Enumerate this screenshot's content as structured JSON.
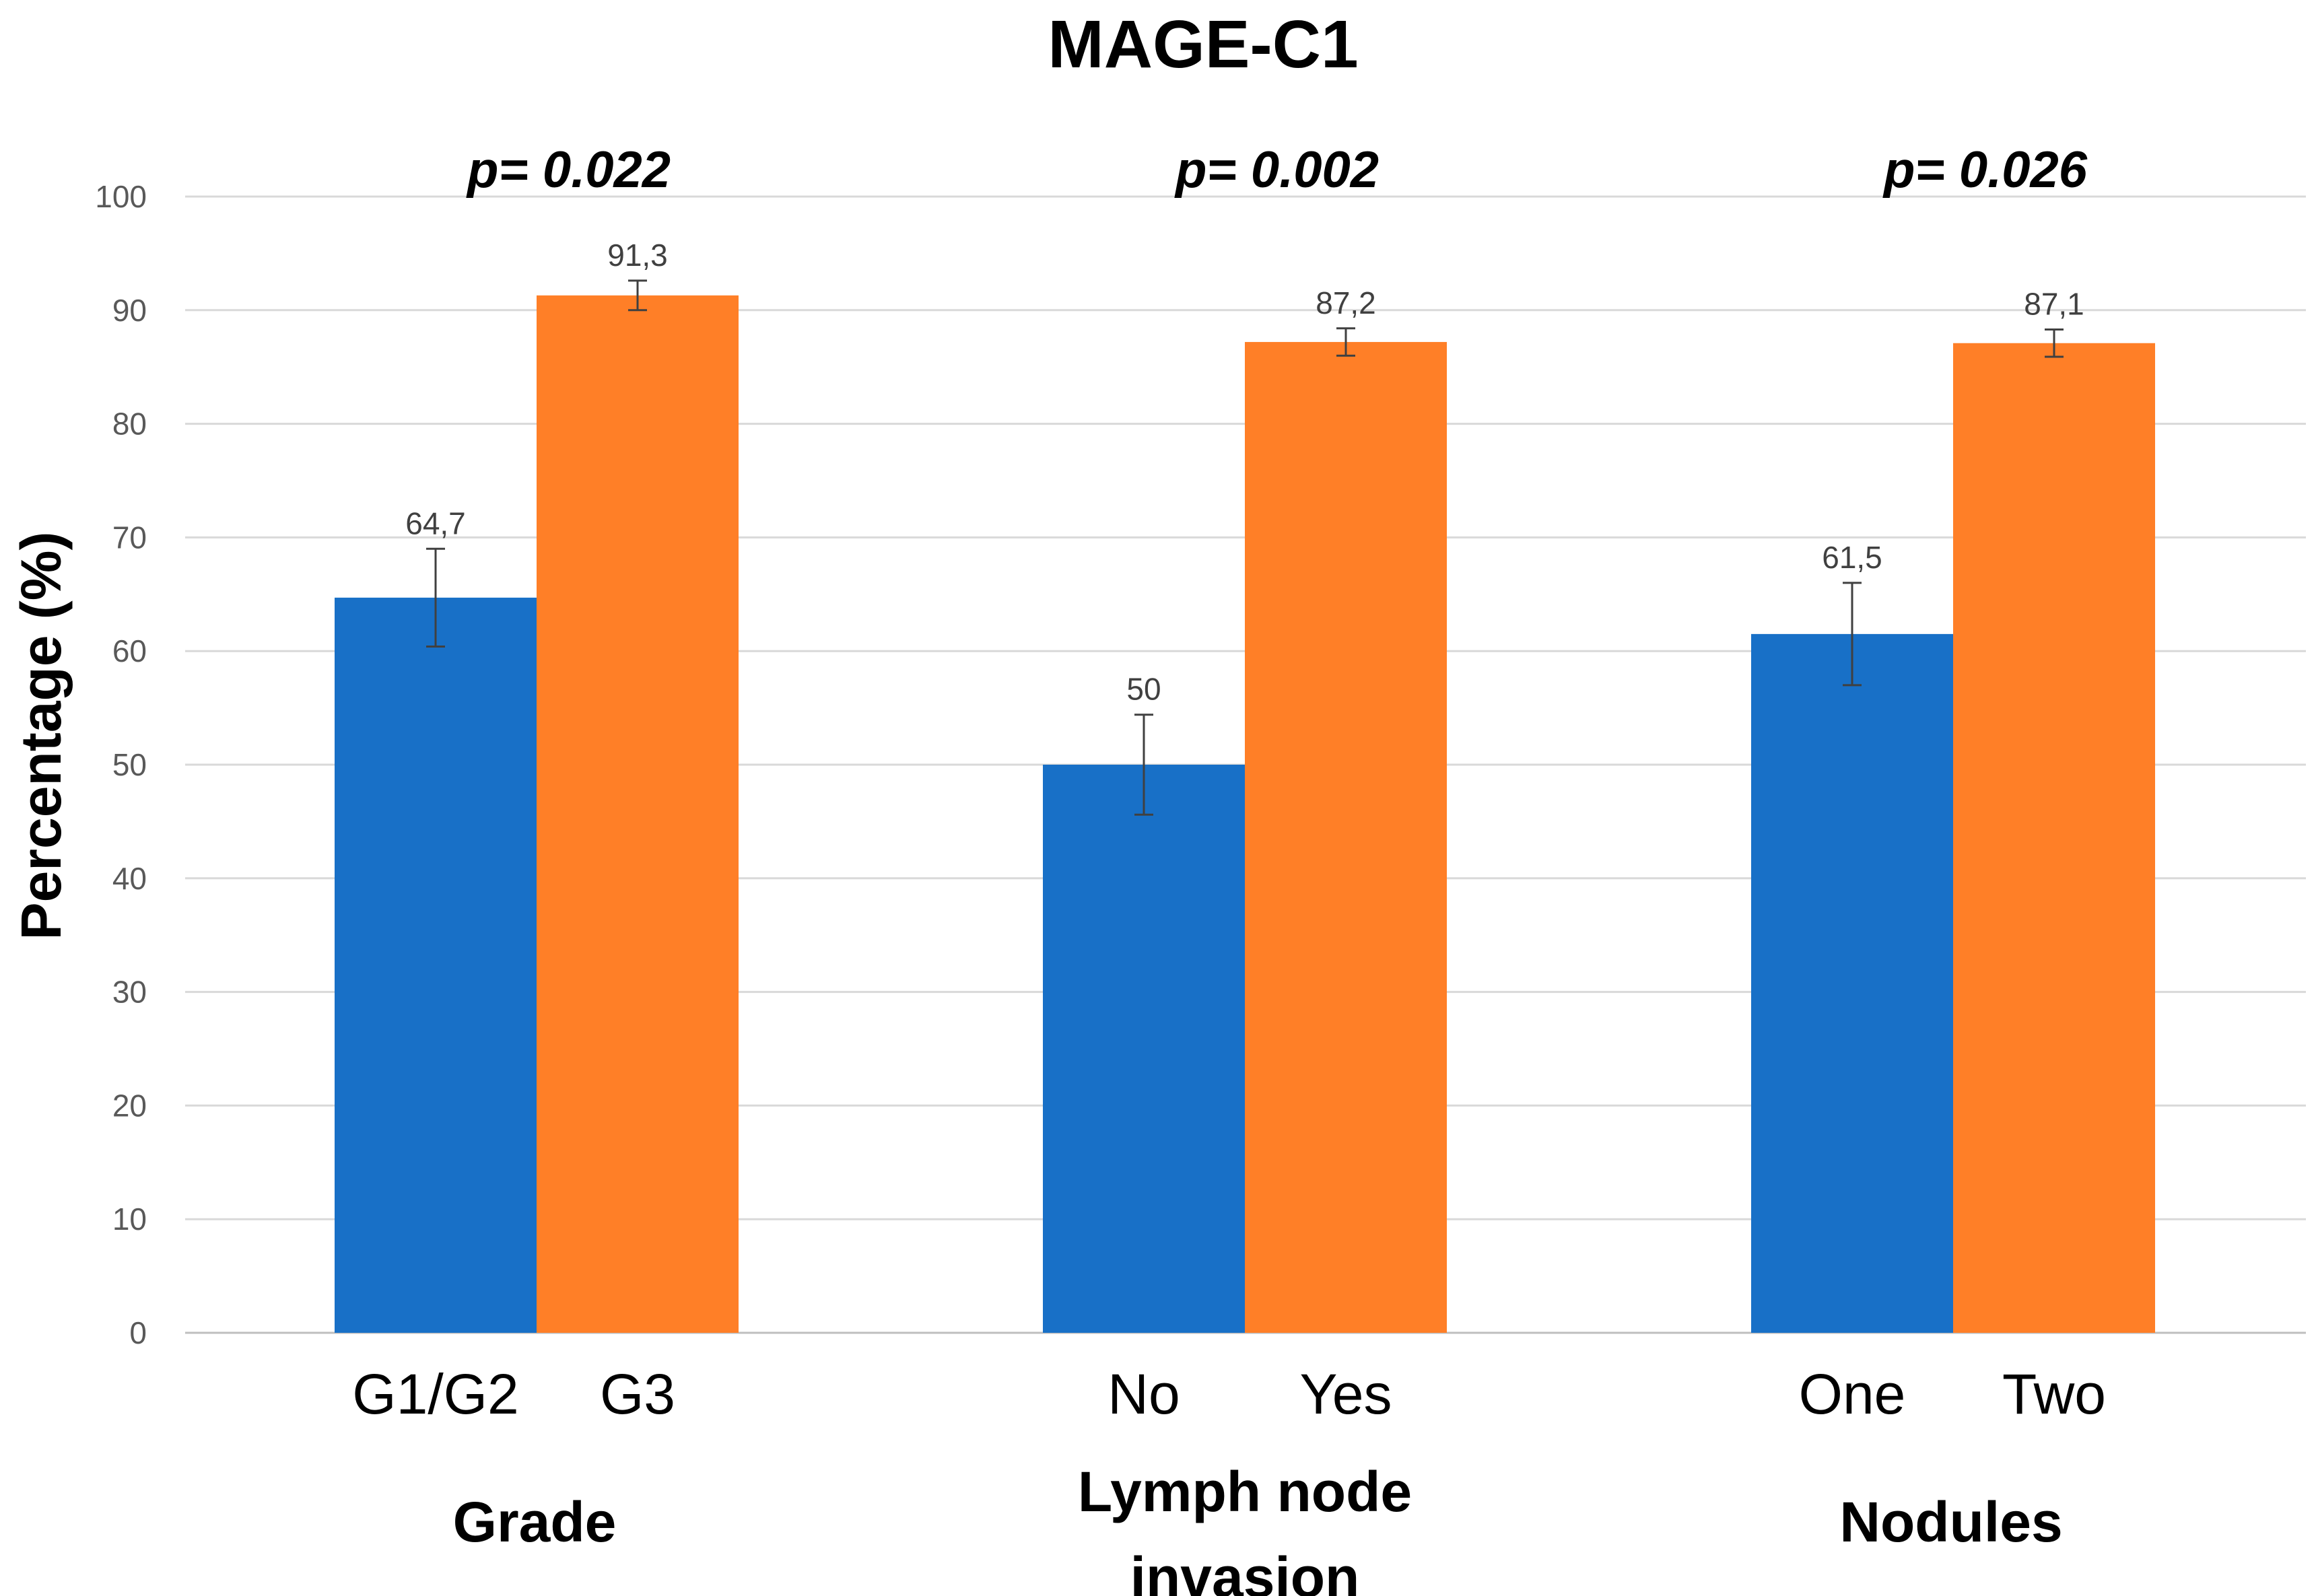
{
  "chart_data": {
    "type": "bar",
    "title": "MAGE-C1",
    "ylabel": "Percentage (%)",
    "xlabel": "",
    "ylim": [
      0,
      100
    ],
    "yticks": [
      0,
      10,
      20,
      30,
      40,
      50,
      60,
      70,
      80,
      90,
      100
    ],
    "grid": true,
    "colors": {
      "low": "#1870C7",
      "high": "#FF7F27"
    },
    "groups": [
      {
        "name": "Grade",
        "p_value": "p= 0.022",
        "bars": [
          {
            "category": "G1/G2",
            "value": 64.7,
            "label": "64,7",
            "error": 4.3,
            "color_key": "low"
          },
          {
            "category": "G3",
            "value": 91.3,
            "label": "91,3",
            "error": 1.3,
            "color_key": "high"
          }
        ]
      },
      {
        "name": "Lymph node invasion",
        "name_lines": [
          "Lymph node",
          "invasion"
        ],
        "p_value": "p= 0.002",
        "bars": [
          {
            "category": "No",
            "value": 50,
            "label": "50",
            "error": 4.4,
            "color_key": "low"
          },
          {
            "category": "Yes",
            "value": 87.2,
            "label": "87,2",
            "error": 1.2,
            "color_key": "high"
          }
        ]
      },
      {
        "name": "Nodules",
        "p_value": "p= 0.026",
        "bars": [
          {
            "category": "One",
            "value": 61.5,
            "label": "61,5",
            "error": 4.5,
            "color_key": "low"
          },
          {
            "category": "Two",
            "value": 87.1,
            "label": "87,1",
            "error": 1.2,
            "color_key": "high"
          }
        ]
      }
    ]
  }
}
